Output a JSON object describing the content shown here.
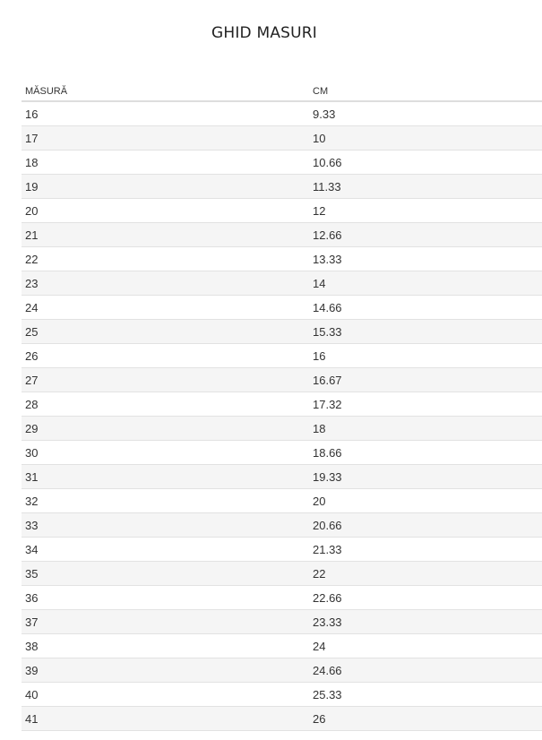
{
  "title": "GHID MASURI",
  "table": {
    "headers": [
      "MĂSURĂ",
      "CM"
    ],
    "rows": [
      [
        "16",
        "9.33"
      ],
      [
        "17",
        "10"
      ],
      [
        "18",
        "10.66"
      ],
      [
        "19",
        "11.33"
      ],
      [
        "20",
        "12"
      ],
      [
        "21",
        "12.66"
      ],
      [
        "22",
        "13.33"
      ],
      [
        "23",
        "14"
      ],
      [
        "24",
        "14.66"
      ],
      [
        "25",
        "15.33"
      ],
      [
        "26",
        "16"
      ],
      [
        "27",
        "16.67"
      ],
      [
        "28",
        "17.32"
      ],
      [
        "29",
        "18"
      ],
      [
        "30",
        "18.66"
      ],
      [
        "31",
        "19.33"
      ],
      [
        "32",
        "20"
      ],
      [
        "33",
        "20.66"
      ],
      [
        "34",
        "21.33"
      ],
      [
        "35",
        "22"
      ],
      [
        "36",
        "22.66"
      ],
      [
        "37",
        "23.33"
      ],
      [
        "38",
        "24"
      ],
      [
        "39",
        "24.66"
      ],
      [
        "40",
        "25.33"
      ],
      [
        "41",
        "26"
      ]
    ]
  },
  "colors": {
    "stripe": "#f5f5f5",
    "border": "#dddddd",
    "text": "#333333"
  }
}
